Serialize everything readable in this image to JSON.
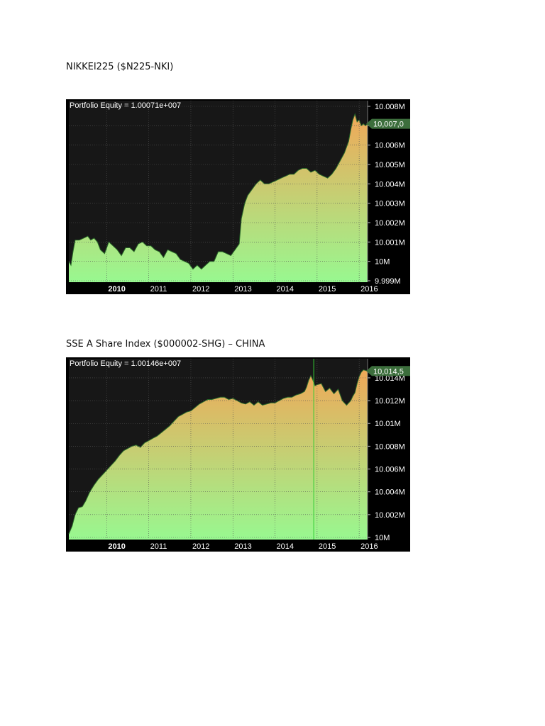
{
  "sections": [
    {
      "title": "NIKKEI225 ($N225-NKI)"
    },
    {
      "title": "SSE A Share Index ($000002-SHG) – CHINA"
    }
  ],
  "chart_data": [
    {
      "type": "area",
      "title": "Portfolio Equity = 1.00071e+007",
      "last_value_label": "10,007,0",
      "ylim": [
        9999000,
        10008000
      ],
      "y_ticks": [
        {
          "label": "10.008M",
          "value": 10008000
        },
        {
          "label": "10.007M",
          "value": 10007000
        },
        {
          "label": "10.006M",
          "value": 10006000
        },
        {
          "label": "10.005M",
          "value": 10005000
        },
        {
          "label": "10.004M",
          "value": 10004000
        },
        {
          "label": "10.003M",
          "value": 10003000
        },
        {
          "label": "10.002M",
          "value": 10002000
        },
        {
          "label": "10.001M",
          "value": 10001000
        },
        {
          "label": "10M",
          "value": 10000000
        },
        {
          "label": "9.999M",
          "value": 9999000
        }
      ],
      "x_ticks": [
        {
          "label": "2010",
          "value": 2010.0,
          "bold": true
        },
        {
          "label": "2011",
          "value": 2011.0,
          "bold": false
        },
        {
          "label": "2012",
          "value": 2012.0,
          "bold": false
        },
        {
          "label": "2013",
          "value": 2013.0,
          "bold": false
        },
        {
          "label": "2014",
          "value": 2014.0,
          "bold": false
        },
        {
          "label": "2015",
          "value": 2015.0,
          "bold": false
        },
        {
          "label": "2016",
          "value": 2016.0,
          "bold": false
        }
      ],
      "xlim": [
        2009.1,
        2016.2
      ],
      "grid": true,
      "colors": {
        "top": "#f0a858",
        "bottom": "#98f890",
        "bg": "#171717",
        "line": "#2a6a2a"
      },
      "series": [
        {
          "x": [
            2009.1,
            2009.15,
            2009.2,
            2009.25,
            2009.35,
            2009.45,
            2009.55,
            2009.62,
            2009.7,
            2009.78,
            2009.85,
            2009.95,
            2010.05,
            2010.15,
            2010.25,
            2010.35,
            2010.45,
            2010.55,
            2010.65,
            2010.75,
            2010.85,
            2010.95,
            2011.05,
            2011.15,
            2011.25,
            2011.35,
            2011.45,
            2011.55,
            2011.65,
            2011.75,
            2011.85,
            2011.95,
            2012.05,
            2012.15,
            2012.25,
            2012.35,
            2012.45,
            2012.55,
            2012.65,
            2012.75,
            2012.85,
            2012.95,
            2013.05,
            2013.15,
            2013.2,
            2013.28,
            2013.35,
            2013.45,
            2013.55,
            2013.65,
            2013.75,
            2013.85,
            2013.95,
            2014.05,
            2014.15,
            2014.25,
            2014.35,
            2014.45,
            2014.55,
            2014.65,
            2014.75,
            2014.85,
            2014.95,
            2015.05,
            2015.15,
            2015.25,
            2015.35,
            2015.45,
            2015.55,
            2015.65,
            2015.75,
            2015.8,
            2015.85,
            2015.9,
            2015.95,
            2016.0,
            2016.05,
            2016.1,
            2016.15,
            2016.2
          ],
          "y": [
            10000000,
            9999800,
            10000500,
            10001100,
            10001100,
            10001200,
            10001300,
            10001100,
            10001200,
            10001000,
            10000600,
            10000400,
            10001000,
            10000800,
            10000600,
            10000300,
            10000700,
            10000700,
            10000500,
            10000900,
            10001000,
            10000800,
            10000800,
            10000600,
            10000500,
            10000200,
            10000600,
            10000500,
            10000400,
            10000100,
            10000000,
            9999900,
            9999600,
            9999800,
            9999600,
            9999800,
            10000000,
            10000000,
            10000500,
            10000500,
            10000400,
            10000300,
            10000600,
            10000900,
            10002200,
            10003000,
            10003400,
            10003700,
            10004000,
            10004200,
            10004000,
            10004000,
            10004100,
            10004200,
            10004300,
            10004400,
            10004500,
            10004500,
            10004700,
            10004800,
            10004800,
            10004600,
            10004700,
            10004500,
            10004400,
            10004300,
            10004500,
            10004800,
            10005200,
            10005600,
            10006200,
            10006800,
            10007300,
            10007600,
            10007200,
            10007300,
            10007000,
            10007100,
            10007000,
            10007100
          ]
        }
      ]
    },
    {
      "type": "area",
      "title": "Portfolio Equity = 1.00146e+007",
      "last_value_label": "10,014,5",
      "ylim": [
        10000000,
        10015800
      ],
      "y_ticks": [
        {
          "label": "10.014M",
          "value": 10014000
        },
        {
          "label": "10.012M",
          "value": 10012000
        },
        {
          "label": "10.01M",
          "value": 10010000
        },
        {
          "label": "10.008M",
          "value": 10008000
        },
        {
          "label": "10.006M",
          "value": 10006000
        },
        {
          "label": "10.004M",
          "value": 10004000
        },
        {
          "label": "10.002M",
          "value": 10002000
        },
        {
          "label": "10M",
          "value": 10000000
        }
      ],
      "x_ticks": [
        {
          "label": "2010",
          "value": 2010.0,
          "bold": true
        },
        {
          "label": "2011",
          "value": 2011.0,
          "bold": false
        },
        {
          "label": "2012",
          "value": 2012.0,
          "bold": false
        },
        {
          "label": "2013",
          "value": 2013.0,
          "bold": false
        },
        {
          "label": "2014",
          "value": 2014.0,
          "bold": false
        },
        {
          "label": "2015",
          "value": 2015.0,
          "bold": false
        },
        {
          "label": "2016",
          "value": 2016.0,
          "bold": false
        }
      ],
      "xlim": [
        2009.1,
        2016.2
      ],
      "grid": true,
      "colors": {
        "top": "#f0a858",
        "bottom": "#98f890",
        "bg": "#171717",
        "line": "#2a6a2a"
      },
      "series": [
        {
          "x": [
            2009.1,
            2009.18,
            2009.25,
            2009.33,
            2009.42,
            2009.5,
            2009.6,
            2009.7,
            2009.8,
            2009.9,
            2010.0,
            2010.1,
            2010.2,
            2010.3,
            2010.4,
            2010.5,
            2010.6,
            2010.7,
            2010.8,
            2010.9,
            2011.0,
            2011.1,
            2011.2,
            2011.3,
            2011.4,
            2011.5,
            2011.6,
            2011.7,
            2011.8,
            2011.9,
            2012.0,
            2012.1,
            2012.2,
            2012.3,
            2012.4,
            2012.5,
            2012.6,
            2012.7,
            2012.8,
            2012.9,
            2013.0,
            2013.1,
            2013.2,
            2013.3,
            2013.4,
            2013.5,
            2013.6,
            2013.7,
            2013.8,
            2013.9,
            2014.0,
            2014.1,
            2014.2,
            2014.3,
            2014.4,
            2014.5,
            2014.6,
            2014.7,
            2014.75,
            2014.8,
            2014.85,
            2014.9,
            2014.95,
            2015.0,
            2015.1,
            2015.2,
            2015.3,
            2015.4,
            2015.5,
            2015.6,
            2015.7,
            2015.75,
            2015.8,
            2015.85,
            2015.9,
            2015.95,
            2016.0,
            2016.05,
            2016.1,
            2016.2
          ],
          "y": [
            10000300,
            10001000,
            10002000,
            10002600,
            10002700,
            10003200,
            10004000,
            10004600,
            10005100,
            10005500,
            10005900,
            10006300,
            10006700,
            10007200,
            10007600,
            10007800,
            10008000,
            10008100,
            10007900,
            10008300,
            10008500,
            10008700,
            10008900,
            10009200,
            10009500,
            10009800,
            10010200,
            10010600,
            10010800,
            10011000,
            10011100,
            10011400,
            10011700,
            10011900,
            10012100,
            10012100,
            10012200,
            10012300,
            10012300,
            10012100,
            10012200,
            10012000,
            10011800,
            10011700,
            10011900,
            10011600,
            10011900,
            10011600,
            10011700,
            10011800,
            10011800,
            10012000,
            10012200,
            10012300,
            10012300,
            10012500,
            10012600,
            10012800,
            10013200,
            10013800,
            10014200,
            10013800,
            10013300,
            10013400,
            10013500,
            10012800,
            10013100,
            10012600,
            10013000,
            10012000,
            10011600,
            10011800,
            10012000,
            10012400,
            10012700,
            10013500,
            10014100,
            10014500,
            10014700,
            10014600
          ]
        }
      ],
      "markers": [
        {
          "x": 2014.92,
          "kind": "vertical-line",
          "color": "#33cc33"
        }
      ]
    }
  ]
}
